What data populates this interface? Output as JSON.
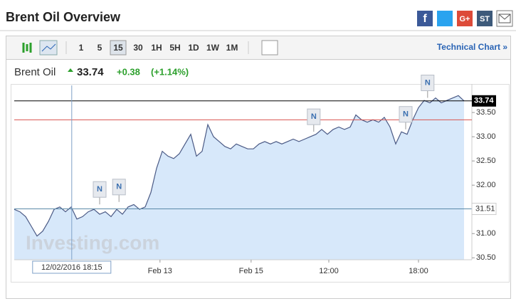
{
  "header": {
    "title": "Brent Oil Overview",
    "social": [
      "G+",
      "ST"
    ]
  },
  "toolbar": {
    "intervals": [
      "1",
      "5",
      "15",
      "30",
      "1H",
      "5H",
      "1D",
      "1W",
      "1M"
    ],
    "link": "Technical Chart »"
  },
  "quote": {
    "name": "Brent Oil",
    "price": "33.74",
    "change": "+0.38",
    "change_pct": "(+1.14%)"
  },
  "chart_data": {
    "type": "line",
    "color": "#4b5a85",
    "area_color": "#d7e8fa",
    "values": [
      31.5,
      31.45,
      31.35,
      31.15,
      30.95,
      31.05,
      31.25,
      31.5,
      31.55,
      31.45,
      31.55,
      31.3,
      31.35,
      31.45,
      31.5,
      31.4,
      31.45,
      31.35,
      31.5,
      31.4,
      31.55,
      31.6,
      31.5,
      31.55,
      31.85,
      32.35,
      32.7,
      32.6,
      32.55,
      32.65,
      32.85,
      33.05,
      32.6,
      32.7,
      33.25,
      33.0,
      32.9,
      32.8,
      32.75,
      32.85,
      32.8,
      32.75,
      32.75,
      32.85,
      32.9,
      32.85,
      32.9,
      32.85,
      32.9,
      32.95,
      32.9,
      32.95,
      33.0,
      33.05,
      33.15,
      33.05,
      33.15,
      33.2,
      33.15,
      33.2,
      33.45,
      33.35,
      33.3,
      33.35,
      33.3,
      33.4,
      33.2,
      32.85,
      33.1,
      33.05,
      33.35,
      33.6,
      33.75,
      33.7,
      33.8,
      33.7,
      33.75,
      33.8,
      33.85,
      33.74
    ],
    "xlim": [
      0,
      80
    ],
    "xticks": [
      {
        "value": 25.6,
        "label": "Feb 13"
      },
      {
        "value": 41.6,
        "label": "Feb 15"
      },
      {
        "value": 55.25,
        "label": "12:00"
      },
      {
        "value": 71,
        "label": "18:00"
      }
    ],
    "ylim": [
      30.46,
      34.06
    ],
    "yticks": [
      {
        "value": 30.5,
        "label": "30.50"
      },
      {
        "value": 31,
        "label": "31.00"
      },
      {
        "value": 31.5,
        "label": "31.50"
      },
      {
        "value": 32,
        "label": "32.00"
      },
      {
        "value": 32.5,
        "label": "32.50"
      },
      {
        "value": 33,
        "label": "33.00"
      },
      {
        "value": 33.5,
        "label": "33.50"
      }
    ],
    "last_price": 33.74,
    "reference_line": 33.35,
    "crosshair": {
      "x": 10.1,
      "y": 31.51,
      "label": "12/02/2016 18:15"
    },
    "news": [
      {
        "x": 15,
        "y": 31.75,
        "label": "N"
      },
      {
        "x": 18.4,
        "y": 31.8,
        "label": "N"
      },
      {
        "x": 52.6,
        "y": 33.25,
        "label": "N"
      },
      {
        "x": 68.75,
        "y": 33.3,
        "label": "N"
      },
      {
        "x": 72.6,
        "y": 33.95,
        "label": "N"
      }
    ],
    "watermark": "Investing.com"
  }
}
